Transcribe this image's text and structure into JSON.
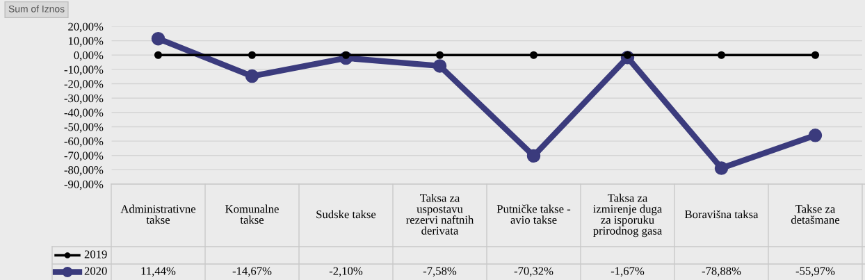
{
  "chart_data": {
    "type": "line",
    "annotations": [
      "Sum of Iznos"
    ],
    "categories": [
      "Administrativne\ntakse",
      "Komunalne\ntakse",
      "Sudske takse",
      "Taksa za\nuspostavu\nrezervi naftnih\nderivata",
      "Putničke takse -\navio takse",
      "Taksa za\nizmirenje duga\nza isporuku\nprirodnog gasa",
      "Boravišna taksa",
      "Takse za\ndetašmane"
    ],
    "series": [
      {
        "name": "2019",
        "color": "#000000",
        "values": [
          0,
          0,
          0,
          0,
          0,
          0,
          0,
          0
        ]
      },
      {
        "name": "2020",
        "color": "#3b3b7d",
        "values": [
          11.44,
          -14.67,
          -2.1,
          -7.58,
          -70.32,
          -1.67,
          -78.88,
          -55.97
        ],
        "value_labels": [
          "11,44%",
          "-14,67%",
          "-2,10%",
          "-7,58%",
          "-70,32%",
          "-1,67%",
          "-78,88%",
          "-55,97%"
        ]
      }
    ],
    "ylim": [
      -90,
      20
    ],
    "yticks": [
      {
        "value": 20,
        "label": "20,00%"
      },
      {
        "value": 10,
        "label": "10,00%"
      },
      {
        "value": 0,
        "label": "0,00%"
      },
      {
        "value": -10,
        "label": "-10,00%"
      },
      {
        "value": -20,
        "label": "-20,00%"
      },
      {
        "value": -30,
        "label": "-30,00%"
      },
      {
        "value": -40,
        "label": "-40,00%"
      },
      {
        "value": -50,
        "label": "-50,00%"
      },
      {
        "value": -60,
        "label": "-60,00%"
      },
      {
        "value": -70,
        "label": "-70,00%"
      },
      {
        "value": -80,
        "label": "-80,00%"
      },
      {
        "value": -90,
        "label": "-90,00%"
      }
    ],
    "grid": "y",
    "legend": "bottom",
    "marker": "circle",
    "line_style": "solid"
  }
}
